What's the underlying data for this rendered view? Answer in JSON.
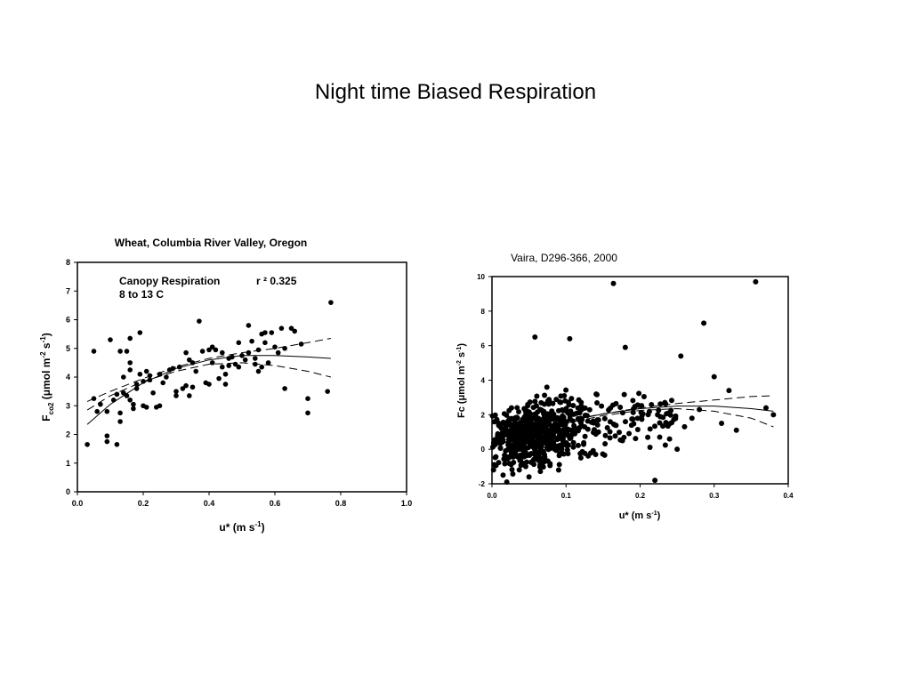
{
  "slide": {
    "title": "Night time Biased Respiration"
  },
  "chart_data": [
    {
      "type": "scatter",
      "title": "Wheat, Columbia River Valley, Oregon",
      "annotations": {
        "label1": "Canopy Respiration",
        "label2": "8 to 13 C",
        "r2_label": "r ²  0.325"
      },
      "xlabel": "u* (m s-1)",
      "ylabel": "Fco2 (μmol m-2 s-1)",
      "xlim": [
        0.0,
        1.0
      ],
      "ylim": [
        0,
        8
      ],
      "xticks": [
        "0.0",
        "0.2",
        "0.4",
        "0.6",
        "0.8",
        "1.0"
      ],
      "yticks": [
        "0",
        "1",
        "2",
        "3",
        "4",
        "5",
        "6",
        "7",
        "8"
      ],
      "grid": false,
      "points": [
        [
          0.03,
          1.65
        ],
        [
          0.05,
          4.9
        ],
        [
          0.05,
          3.25
        ],
        [
          0.06,
          2.8
        ],
        [
          0.07,
          3.05
        ],
        [
          0.09,
          2.8
        ],
        [
          0.09,
          1.95
        ],
        [
          0.09,
          1.75
        ],
        [
          0.1,
          5.3
        ],
        [
          0.11,
          3.2
        ],
        [
          0.12,
          1.65
        ],
        [
          0.12,
          3.4
        ],
        [
          0.13,
          4.9
        ],
        [
          0.13,
          2.45
        ],
        [
          0.13,
          2.75
        ],
        [
          0.14,
          3.45
        ],
        [
          0.14,
          4.0
        ],
        [
          0.15,
          4.9
        ],
        [
          0.15,
          3.35
        ],
        [
          0.16,
          5.35
        ],
        [
          0.16,
          4.5
        ],
        [
          0.16,
          3.2
        ],
        [
          0.16,
          4.25
        ],
        [
          0.17,
          2.9
        ],
        [
          0.17,
          3.05
        ],
        [
          0.18,
          3.6
        ],
        [
          0.18,
          3.75
        ],
        [
          0.19,
          5.55
        ],
        [
          0.19,
          4.1
        ],
        [
          0.2,
          3.0
        ],
        [
          0.2,
          3.85
        ],
        [
          0.21,
          4.2
        ],
        [
          0.21,
          2.95
        ],
        [
          0.22,
          4.05
        ],
        [
          0.22,
          3.9
        ],
        [
          0.23,
          3.45
        ],
        [
          0.24,
          2.95
        ],
        [
          0.25,
          3.0
        ],
        [
          0.25,
          4.1
        ],
        [
          0.26,
          3.8
        ],
        [
          0.27,
          4.0
        ],
        [
          0.28,
          4.25
        ],
        [
          0.29,
          4.3
        ],
        [
          0.3,
          3.35
        ],
        [
          0.3,
          3.5
        ],
        [
          0.31,
          4.35
        ],
        [
          0.32,
          3.6
        ],
        [
          0.33,
          4.85
        ],
        [
          0.33,
          3.7
        ],
        [
          0.34,
          4.6
        ],
        [
          0.34,
          3.35
        ],
        [
          0.35,
          3.65
        ],
        [
          0.35,
          4.5
        ],
        [
          0.36,
          4.2
        ],
        [
          0.37,
          5.95
        ],
        [
          0.38,
          4.9
        ],
        [
          0.39,
          3.8
        ],
        [
          0.4,
          4.95
        ],
        [
          0.4,
          3.75
        ],
        [
          0.41,
          5.05
        ],
        [
          0.41,
          4.5
        ],
        [
          0.42,
          4.95
        ],
        [
          0.43,
          3.95
        ],
        [
          0.44,
          4.85
        ],
        [
          0.44,
          4.35
        ],
        [
          0.45,
          4.1
        ],
        [
          0.45,
          3.75
        ],
        [
          0.46,
          4.65
        ],
        [
          0.46,
          4.4
        ],
        [
          0.47,
          4.7
        ],
        [
          0.48,
          4.45
        ],
        [
          0.49,
          5.2
        ],
        [
          0.49,
          4.35
        ],
        [
          0.5,
          4.75
        ],
        [
          0.51,
          4.6
        ],
        [
          0.52,
          5.8
        ],
        [
          0.52,
          4.85
        ],
        [
          0.53,
          5.25
        ],
        [
          0.54,
          4.45
        ],
        [
          0.54,
          4.65
        ],
        [
          0.55,
          4.95
        ],
        [
          0.55,
          4.2
        ],
        [
          0.56,
          5.5
        ],
        [
          0.56,
          4.35
        ],
        [
          0.57,
          5.55
        ],
        [
          0.57,
          5.2
        ],
        [
          0.58,
          4.5
        ],
        [
          0.59,
          5.55
        ],
        [
          0.6,
          5.05
        ],
        [
          0.61,
          4.85
        ],
        [
          0.62,
          5.7
        ],
        [
          0.63,
          5.0
        ],
        [
          0.63,
          3.6
        ],
        [
          0.65,
          5.7
        ],
        [
          0.66,
          5.6
        ],
        [
          0.68,
          5.15
        ],
        [
          0.7,
          3.25
        ],
        [
          0.7,
          2.75
        ],
        [
          0.76,
          3.5
        ],
        [
          0.77,
          6.6
        ]
      ],
      "series": [
        {
          "style": "solid",
          "curve": [
            [
              0.03,
              2.35
            ],
            [
              0.1,
              3.05
            ],
            [
              0.2,
              3.8
            ],
            [
              0.3,
              4.3
            ],
            [
              0.4,
              4.6
            ],
            [
              0.5,
              4.75
            ],
            [
              0.6,
              4.75
            ],
            [
              0.7,
              4.7
            ],
            [
              0.77,
              4.65
            ]
          ]
        },
        {
          "style": "dashed",
          "curve": [
            [
              0.03,
              3.15
            ],
            [
              0.1,
              3.5
            ],
            [
              0.2,
              3.95
            ],
            [
              0.3,
              4.35
            ],
            [
              0.4,
              4.65
            ],
            [
              0.5,
              4.85
            ],
            [
              0.6,
              5.0
            ],
            [
              0.7,
              5.2
            ],
            [
              0.77,
              5.35
            ]
          ]
        },
        {
          "style": "dashed",
          "curve": [
            [
              0.03,
              2.85
            ],
            [
              0.1,
              3.35
            ],
            [
              0.2,
              3.85
            ],
            [
              0.3,
              4.2
            ],
            [
              0.4,
              4.45
            ],
            [
              0.5,
              4.5
            ],
            [
              0.6,
              4.4
            ],
            [
              0.7,
              4.2
            ],
            [
              0.77,
              4.0
            ]
          ]
        }
      ]
    },
    {
      "type": "scatter",
      "title": "Vaira, D296-366, 2000",
      "xlabel": "u* (m s-1)",
      "ylabel": "Fc (μmol m-2 s-1)",
      "xlim": [
        0.0,
        0.4
      ],
      "ylim": [
        -2,
        10
      ],
      "xticks": [
        "0.0",
        "0.1",
        "0.2",
        "0.3",
        "0.4"
      ],
      "yticks": [
        "-2",
        "0",
        "2",
        "4",
        "6",
        "8",
        "10"
      ],
      "grid": false,
      "outliers": [
        [
          0.164,
          9.6
        ],
        [
          0.356,
          9.7
        ],
        [
          0.286,
          7.3
        ],
        [
          0.058,
          6.5
        ],
        [
          0.105,
          6.4
        ],
        [
          0.18,
          5.9
        ],
        [
          0.255,
          5.4
        ],
        [
          0.3,
          4.2
        ],
        [
          0.32,
          3.4
        ],
        [
          0.37,
          2.4
        ],
        [
          0.38,
          2.0
        ],
        [
          0.22,
          -1.8
        ],
        [
          0.25,
          0.0
        ],
        [
          0.33,
          1.1
        ],
        [
          0.31,
          1.5
        ],
        [
          0.27,
          1.8
        ],
        [
          0.28,
          2.3
        ],
        [
          0.26,
          1.3
        ],
        [
          0.015,
          -1.5
        ],
        [
          0.02,
          -1.9
        ],
        [
          0.05,
          -1.6
        ],
        [
          0.09,
          -1.2
        ],
        [
          0.12,
          -0.5
        ],
        [
          0.14,
          -0.3
        ]
      ],
      "cloud": {
        "count": 700,
        "description": "dense cloud of points concentrated between u* 0.0–0.2 and Fc -1 to 4"
      },
      "series": [
        {
          "style": "solid",
          "curve": [
            [
              0.0,
              0.3
            ],
            [
              0.05,
              1.0
            ],
            [
              0.1,
              1.6
            ],
            [
              0.15,
              2.05
            ],
            [
              0.2,
              2.35
            ],
            [
              0.25,
              2.5
            ],
            [
              0.3,
              2.5
            ],
            [
              0.35,
              2.35
            ],
            [
              0.38,
              2.2
            ]
          ]
        },
        {
          "style": "dashed",
          "curve": [
            [
              0.0,
              0.5
            ],
            [
              0.05,
              1.1
            ],
            [
              0.1,
              1.65
            ],
            [
              0.15,
              2.05
            ],
            [
              0.2,
              2.4
            ],
            [
              0.25,
              2.65
            ],
            [
              0.3,
              2.85
            ],
            [
              0.35,
              3.05
            ],
            [
              0.38,
              3.1
            ]
          ]
        },
        {
          "style": "dashed",
          "curve": [
            [
              0.0,
              0.1
            ],
            [
              0.05,
              0.9
            ],
            [
              0.1,
              1.5
            ],
            [
              0.15,
              1.95
            ],
            [
              0.2,
              2.25
            ],
            [
              0.25,
              2.35
            ],
            [
              0.3,
              2.2
            ],
            [
              0.35,
              1.8
            ],
            [
              0.38,
              1.3
            ]
          ]
        }
      ]
    }
  ]
}
